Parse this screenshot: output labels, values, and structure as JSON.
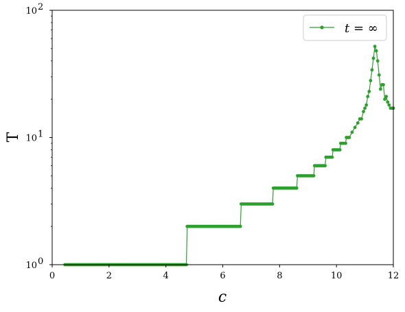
{
  "chart_data": {
    "type": "line",
    "xlabel": "c",
    "ylabel": "T",
    "xlim": [
      0,
      12
    ],
    "ylim": [
      1,
      100
    ],
    "yscale": "log",
    "grid": false,
    "legend_position": "top-right",
    "x_ticks": [
      "0",
      "2",
      "4",
      "6",
      "8",
      "10",
      "12"
    ],
    "y_ticks": [
      {
        "value": 1,
        "base": "10",
        "exp": "0"
      },
      {
        "value": 10,
        "base": "10",
        "exp": "1"
      },
      {
        "value": 100,
        "base": "10",
        "exp": "2"
      }
    ],
    "series": [
      {
        "name": "t = ∞",
        "color": "#2ca02c",
        "marker": "circle",
        "steps": [
          {
            "x_start": 0.45,
            "x_end": 4.72,
            "y": 1
          },
          {
            "x_start": 4.75,
            "x_end": 6.62,
            "y": 2
          },
          {
            "x_start": 6.65,
            "x_end": 7.75,
            "y": 3
          },
          {
            "x_start": 7.78,
            "x_end": 8.6,
            "y": 4
          },
          {
            "x_start": 8.63,
            "x_end": 9.2,
            "y": 5
          },
          {
            "x_start": 9.23,
            "x_end": 9.6,
            "y": 6
          },
          {
            "x_start": 9.63,
            "x_end": 9.85,
            "y": 7
          },
          {
            "x_start": 9.88,
            "x_end": 10.12,
            "y": 8
          },
          {
            "x_start": 10.15,
            "x_end": 10.32,
            "y": 9
          },
          {
            "x_start": 10.35,
            "x_end": 10.45,
            "y": 10
          }
        ],
        "x": [
          10.55,
          10.65,
          10.75,
          10.82,
          10.88,
          10.95,
          11.0,
          11.05,
          11.1,
          11.15,
          11.2,
          11.25,
          11.3,
          11.35,
          11.4,
          11.45,
          11.5,
          11.55,
          11.6,
          11.65,
          11.7,
          11.75,
          11.8,
          11.85,
          11.9,
          11.95,
          12.0
        ],
        "y": [
          11,
          12,
          13,
          14,
          14,
          16,
          17,
          18,
          21,
          23,
          28,
          34,
          42,
          52,
          48,
          40,
          31,
          24,
          26,
          26,
          20,
          21,
          19,
          18,
          17,
          17,
          17
        ]
      }
    ]
  }
}
